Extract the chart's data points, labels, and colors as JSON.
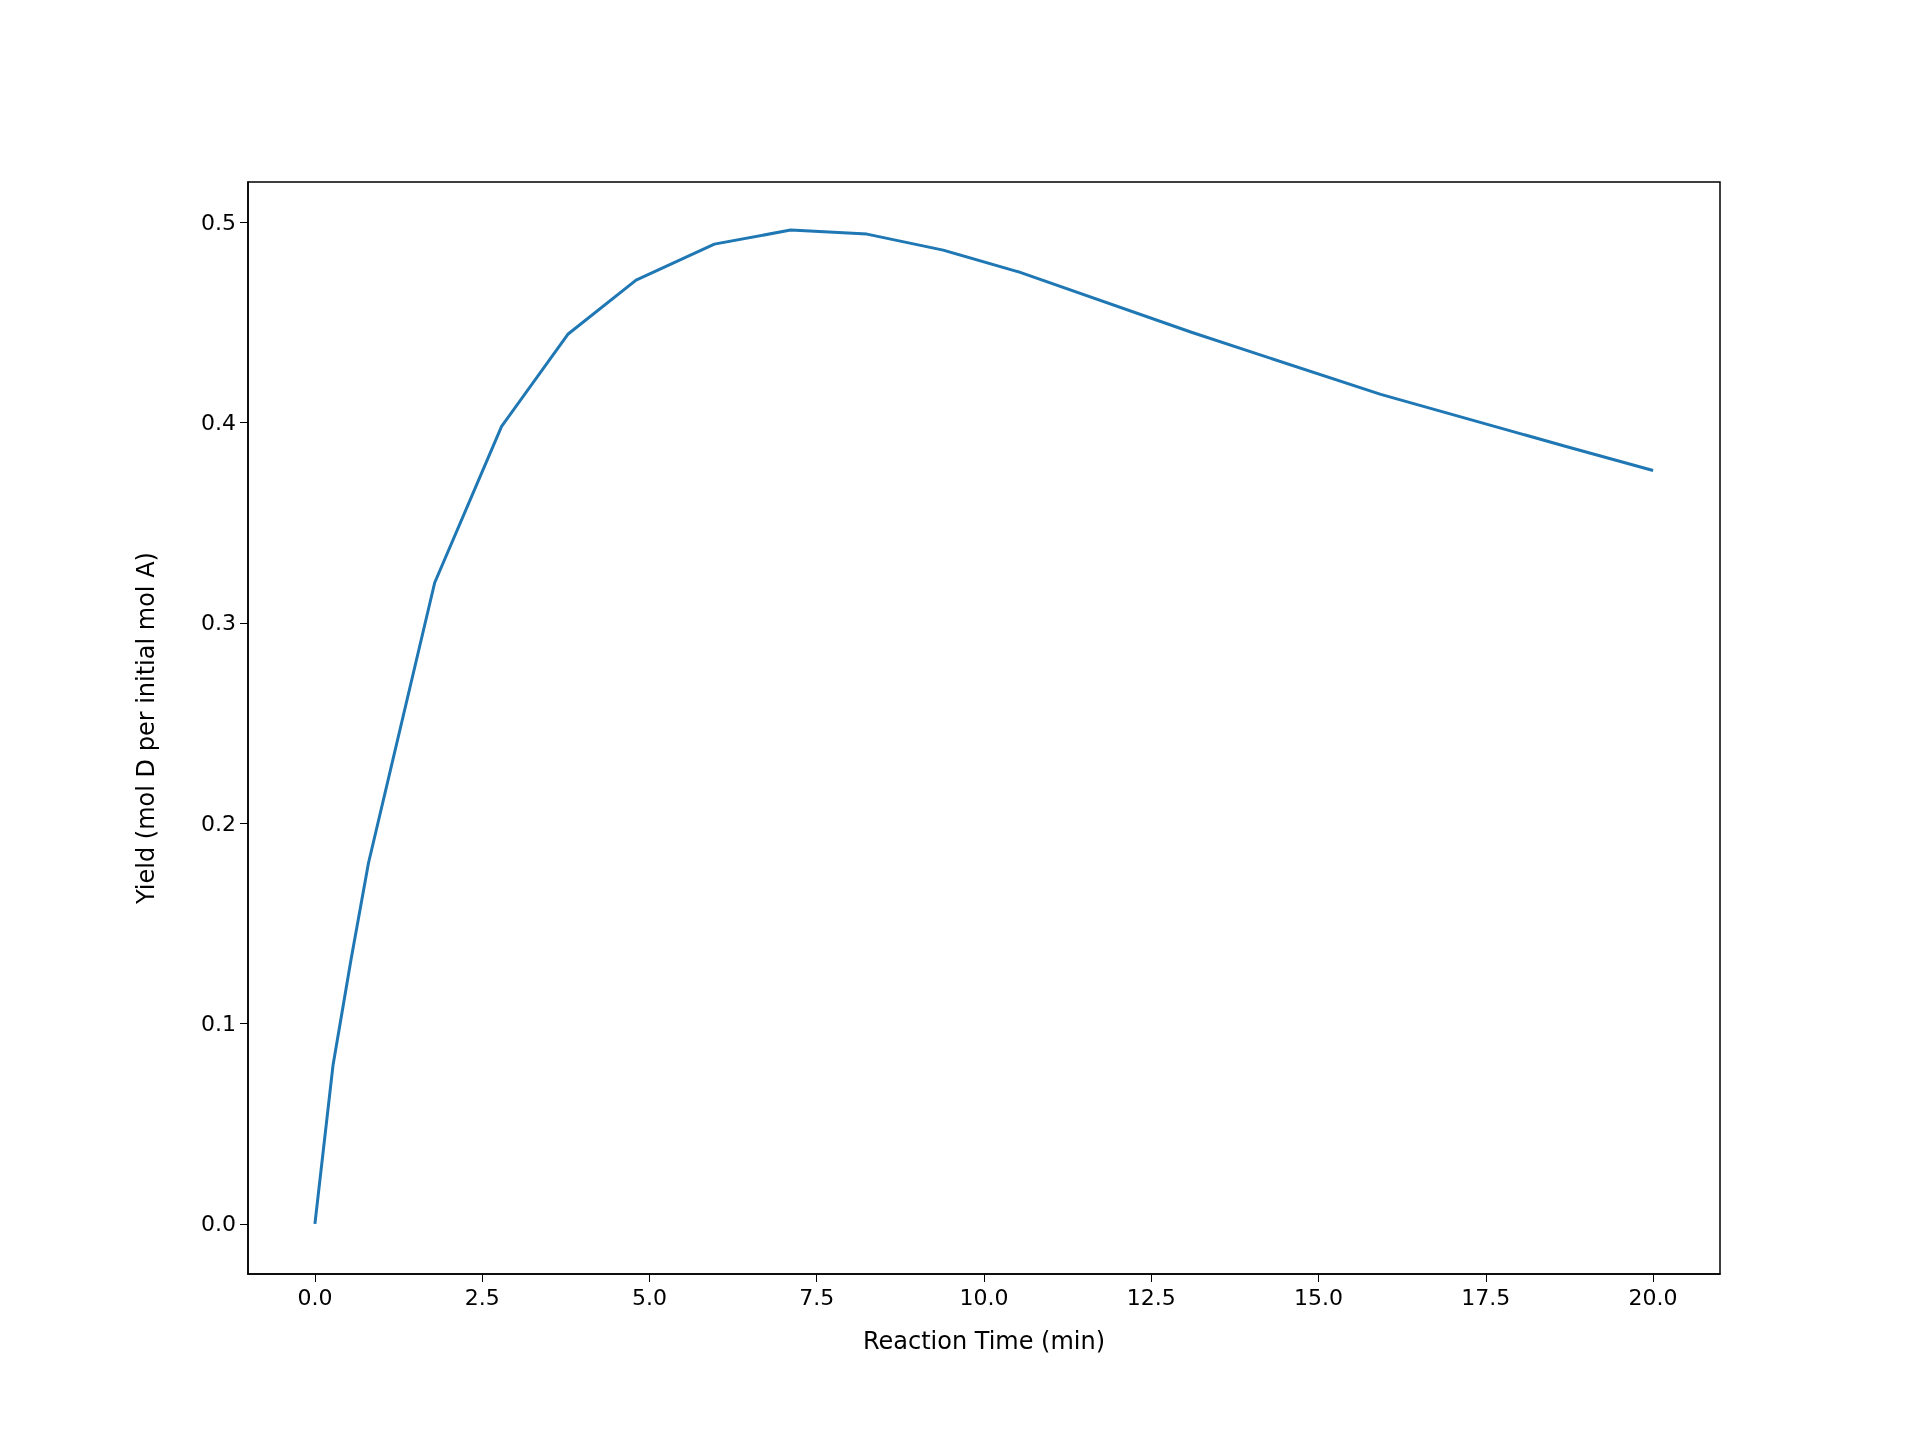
{
  "chart_data": {
    "type": "line",
    "xlabel": "Reaction Time (min)",
    "ylabel": "Yield (mol D per initial mol A)",
    "series": [
      {
        "color": "#1f77b4",
        "x": [
          0,
          0.27,
          0.54,
          0.8,
          1.79,
          2.79,
          3.78,
          4.8,
          5.97,
          7.11,
          8.25,
          9.39,
          10.53,
          13.1,
          15.93,
          18.7,
          20
        ],
        "values": [
          0,
          0.079,
          0.132,
          0.18,
          0.32,
          0.398,
          0.444,
          0.471,
          0.489,
          0.496,
          0.494,
          0.486,
          0.475,
          0.445,
          0.414,
          0.388,
          0.376
        ]
      }
    ],
    "xlim": [
      -1,
      21
    ],
    "ylim": [
      -0.025,
      0.52
    ],
    "xticks": [
      {
        "value": 0,
        "label": "0.0"
      },
      {
        "value": 2.5,
        "label": "2.5"
      },
      {
        "value": 5,
        "label": "5.0"
      },
      {
        "value": 7.5,
        "label": "7.5"
      },
      {
        "value": 10,
        "label": "10.0"
      },
      {
        "value": 12.5,
        "label": "12.5"
      },
      {
        "value": 15,
        "label": "15.0"
      },
      {
        "value": 17.5,
        "label": "17.5"
      },
      {
        "value": 20,
        "label": "20.0"
      }
    ],
    "yticks": [
      {
        "value": 0,
        "label": "0.0"
      },
      {
        "value": 0.1,
        "label": "0.1"
      },
      {
        "value": 0.2,
        "label": "0.2"
      },
      {
        "value": 0.3,
        "label": "0.3"
      },
      {
        "value": 0.4,
        "label": "0.4"
      },
      {
        "value": 0.5,
        "label": "0.5"
      }
    ],
    "grid": false,
    "marker": "none",
    "line_style": "solid"
  }
}
